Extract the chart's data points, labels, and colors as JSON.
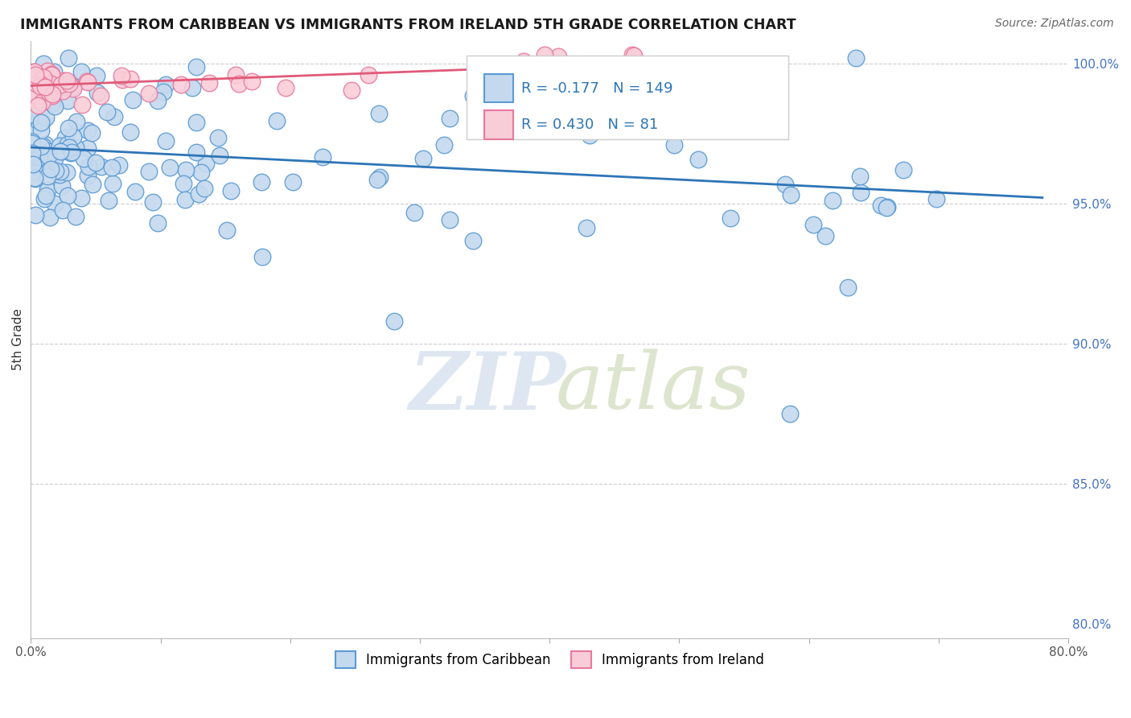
{
  "title": "IMMIGRANTS FROM CARIBBEAN VS IMMIGRANTS FROM IRELAND 5TH GRADE CORRELATION CHART",
  "source": "Source: ZipAtlas.com",
  "ylabel": "5th Grade",
  "xlim": [
    0.0,
    0.8
  ],
  "ylim": [
    0.795,
    1.008
  ],
  "yticks_right": [
    0.8,
    0.85,
    0.9,
    0.95,
    1.0
  ],
  "ytick_right_labels": [
    "80.0%",
    "85.0%",
    "90.0%",
    "95.0%",
    "100.0%"
  ],
  "blue_color": "#c5d9ee",
  "blue_edge": "#5b9bd5",
  "pink_color": "#f9cdd8",
  "pink_edge": "#e8799e",
  "trend_blue_color": "#2e75b6",
  "trend_pink_color": "#e05a7a",
  "legend_R_blue": "-0.177",
  "legend_N_blue": "149",
  "legend_R_pink": "0.430",
  "legend_N_pink": "81"
}
